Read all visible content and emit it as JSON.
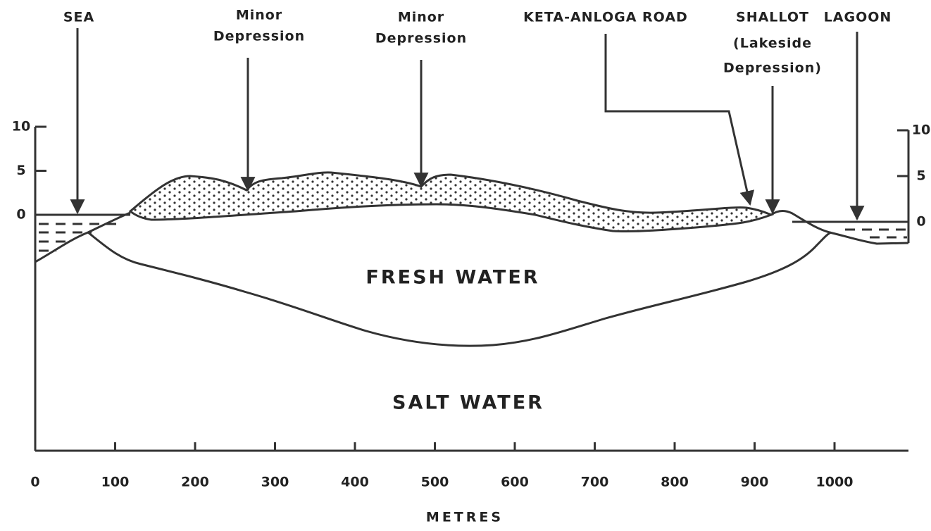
{
  "labels": {
    "sea": "SEA",
    "minor_depression_1": [
      "Minor",
      "Depression"
    ],
    "minor_depression_2": [
      "Minor",
      "Depression"
    ],
    "road": "KETA-ANLOGA ROAD",
    "shallot": [
      "SHALLOT",
      "(Lakeside",
      "Depression)"
    ],
    "lagoon": "LAGOON",
    "fresh_water": "FRESH WATER",
    "salt_water": "SALT WATER"
  },
  "x_axis": {
    "title": "METRES",
    "ticks": [
      0,
      100,
      200,
      300,
      400,
      500,
      600,
      700,
      800,
      900,
      1000
    ]
  },
  "y_axis_left": {
    "ticks": [
      0,
      5,
      10
    ]
  },
  "y_axis_right": {
    "ticks": [
      0,
      5,
      10
    ]
  }
}
